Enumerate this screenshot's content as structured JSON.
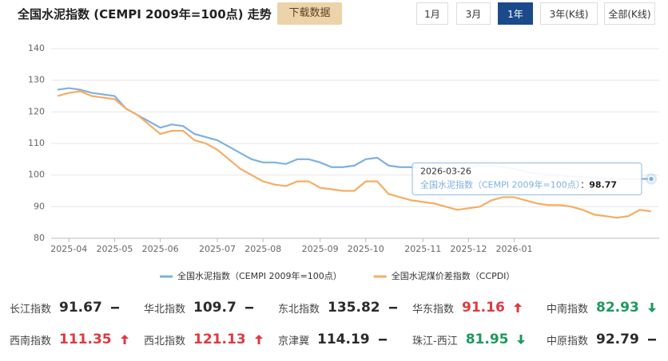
{
  "header": {
    "title": "全国水泥指数 (CEMPI 2009年=100点) 走势",
    "download": "下载数据",
    "tabs": [
      "1月",
      "3月",
      "1年",
      "3年(K线)",
      "全部(K线)"
    ],
    "active_tab": 2
  },
  "chart_data": {
    "type": "line",
    "categories": [
      null,
      "2025-04",
      null,
      null,
      null,
      "2025-05",
      null,
      null,
      null,
      "2025-06",
      null,
      null,
      null,
      null,
      "2025-07",
      null,
      null,
      null,
      "2025-08",
      null,
      null,
      null,
      null,
      "2025-09",
      null,
      null,
      null,
      "2025-10",
      null,
      null,
      null,
      null,
      "2025-11",
      null,
      null,
      null,
      "2025-12",
      null,
      null,
      null,
      "2026-01",
      null,
      null,
      null,
      null,
      null,
      null,
      null,
      null,
      null,
      null,
      null,
      null
    ],
    "series": [
      {
        "name": "全国水泥指数（CEMPI 2009年=100点）",
        "color": "#7fb0e0",
        "values": [
          127,
          127.5,
          127,
          126,
          125.5,
          125,
          121,
          119,
          117,
          115,
          116,
          115.5,
          113,
          112,
          111,
          109,
          107,
          105,
          104,
          104,
          103.5,
          105,
          105,
          104,
          102.5,
          102.5,
          103,
          105,
          105.5,
          103,
          102.5,
          102.5,
          102,
          102,
          102,
          102,
          102.5,
          103,
          103,
          102.5,
          102,
          101,
          100.5,
          100,
          100,
          99.5,
          99.5,
          99,
          99,
          98.8,
          98.8,
          98.8,
          98.77
        ]
      },
      {
        "name": "全国水泥煤价差指数（CCPDI）",
        "color": "#f5ad62",
        "values": [
          125,
          126,
          126.5,
          125,
          124.5,
          124,
          121,
          119,
          116,
          113,
          114,
          114,
          111,
          110,
          108,
          105,
          102,
          100,
          98,
          97,
          96.5,
          98,
          98,
          96,
          95.5,
          95,
          95,
          98,
          98,
          94,
          93,
          92,
          91.5,
          91,
          90,
          89,
          89.5,
          90,
          92,
          93,
          93,
          92,
          91,
          90.5,
          90.5,
          90,
          89,
          87.5,
          87,
          86.5,
          87,
          89,
          88.5
        ]
      }
    ],
    "ylim": [
      80,
      140
    ],
    "yticks": [
      80,
      90,
      100,
      110,
      120,
      130,
      140
    ],
    "grid": true,
    "tooltip": {
      "date": "2026-03-26",
      "separator": "："
    }
  },
  "indices": [
    {
      "name": "长江指数",
      "value": 91.67,
      "trend": "flat"
    },
    {
      "name": "华北指数",
      "value": 109.7,
      "trend": "flat"
    },
    {
      "name": "东北指数",
      "value": 135.82,
      "trend": "flat"
    },
    {
      "name": "华东指数",
      "value": 91.16,
      "trend": "up"
    },
    {
      "name": "中南指数",
      "value": 82.93,
      "trend": "down"
    },
    {
      "name": "西南指数",
      "value": 111.35,
      "trend": "up"
    },
    {
      "name": "西北指数",
      "value": 121.13,
      "trend": "up"
    },
    {
      "name": "京津冀",
      "value": 114.19,
      "trend": "flat"
    },
    {
      "name": "珠江-西江",
      "value": 81.95,
      "trend": "down"
    },
    {
      "name": "中原指数",
      "value": 92.79,
      "trend": "flat"
    }
  ]
}
